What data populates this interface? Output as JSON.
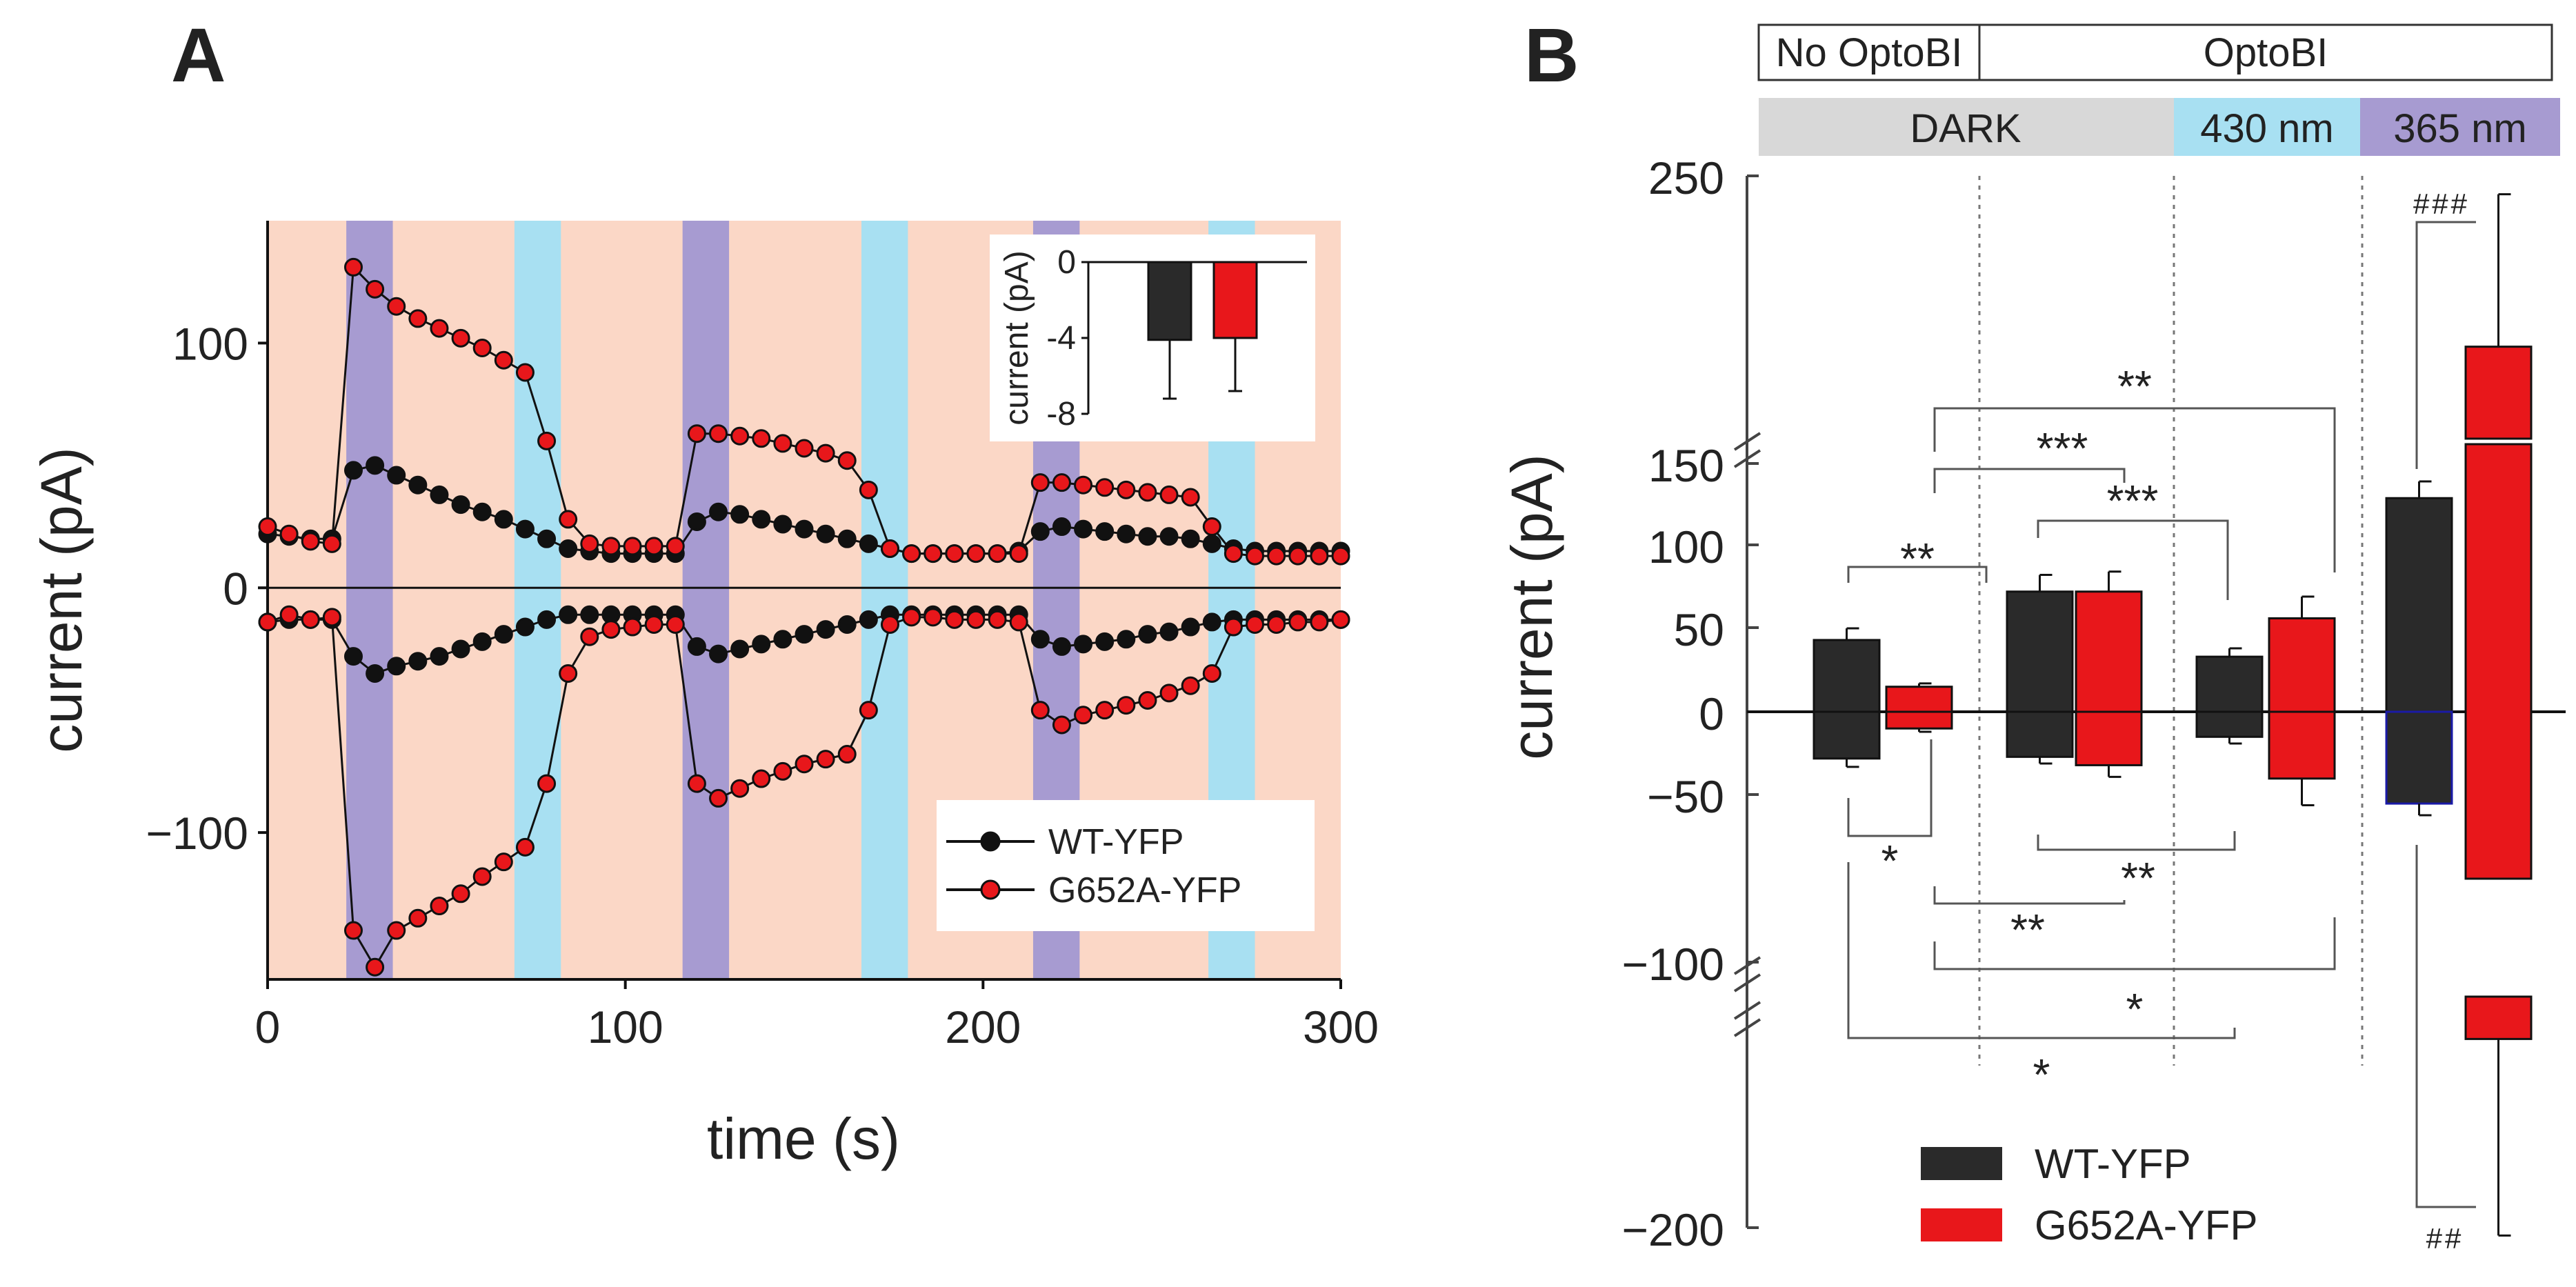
{
  "panels": {
    "a": "A",
    "b": "B"
  },
  "chart_data": [
    {
      "type": "line",
      "panel": "A",
      "xlabel": "time (s)",
      "ylabel": "current (pA)",
      "xlim": [
        0,
        300
      ],
      "ylim": [
        -160,
        150
      ],
      "xticks": [
        "0",
        "100",
        "200",
        "300"
      ],
      "yticks": [
        "−100",
        "0",
        "100"
      ],
      "ytick_values": [
        -100,
        0,
        100
      ],
      "xtick_values": [
        0,
        100,
        200,
        300
      ],
      "background_color": "#fbd7c6",
      "illumination_bands": [
        {
          "start": 22,
          "end": 35,
          "light": "365 nm",
          "color": "#a79bd1"
        },
        {
          "start": 69,
          "end": 82,
          "light": "430 nm",
          "color": "#a8e0f2"
        },
        {
          "start": 116,
          "end": 129,
          "light": "365 nm",
          "color": "#a79bd1"
        },
        {
          "start": 166,
          "end": 179,
          "light": "430 nm",
          "color": "#a8e0f2"
        },
        {
          "start": 214,
          "end": 227,
          "light": "365 nm",
          "color": "#a79bd1"
        },
        {
          "start": 263,
          "end": 276,
          "light": "430 nm",
          "color": "#a8e0f2"
        }
      ],
      "x": [
        0,
        6,
        12,
        18,
        24,
        30,
        36,
        42,
        48,
        54,
        60,
        66,
        72,
        78,
        84,
        90,
        96,
        102,
        108,
        114,
        120,
        126,
        132,
        138,
        144,
        150,
        156,
        162,
        168,
        174,
        180,
        186,
        192,
        198,
        204,
        210,
        216,
        222,
        228,
        234,
        240,
        246,
        252,
        258,
        264,
        270,
        276,
        282,
        288,
        294,
        300
      ],
      "series": [
        {
          "name": "WT-YFP",
          "color": "#111111",
          "part": "outward",
          "values": [
            22,
            21,
            20,
            20,
            48,
            50,
            46,
            42,
            38,
            34,
            31,
            28,
            24,
            20,
            16,
            15,
            14,
            14,
            14,
            14,
            27,
            31,
            30,
            28,
            26,
            24,
            22,
            20,
            18,
            16,
            14,
            14,
            14,
            14,
            14,
            15,
            23,
            25,
            24,
            23,
            22,
            21,
            21,
            20,
            18,
            16,
            15,
            15,
            15,
            15,
            15
          ]
        },
        {
          "name": "WT-YFP",
          "color": "#111111",
          "part": "inward",
          "values": [
            -14,
            -13,
            -13,
            -13,
            -28,
            -35,
            -32,
            -30,
            -28,
            -25,
            -22,
            -19,
            -16,
            -13,
            -11,
            -11,
            -11,
            -11,
            -11,
            -11,
            -24,
            -27,
            -25,
            -23,
            -21,
            -19,
            -17,
            -15,
            -13,
            -11,
            -11,
            -11,
            -11,
            -11,
            -11,
            -11,
            -21,
            -24,
            -23,
            -22,
            -21,
            -19,
            -18,
            -16,
            -14,
            -13,
            -13,
            -13,
            -13,
            -13,
            -13
          ]
        },
        {
          "name": "G652A-YFP",
          "color": "#e8171b",
          "part": "outward",
          "values": [
            25,
            22,
            19,
            18,
            131,
            122,
            115,
            110,
            106,
            102,
            98,
            93,
            88,
            60,
            28,
            18,
            17,
            17,
            17,
            17,
            63,
            63,
            62,
            61,
            59,
            57,
            55,
            52,
            40,
            16,
            14,
            14,
            14,
            14,
            14,
            14,
            43,
            43,
            42,
            41,
            40,
            39,
            38,
            37,
            25,
            14,
            13,
            13,
            13,
            13,
            13
          ]
        },
        {
          "name": "G652A-YFP",
          "color": "#e8171b",
          "part": "inward",
          "values": [
            -14,
            -11,
            -13,
            -12,
            -140,
            -155,
            -140,
            -135,
            -130,
            -125,
            -118,
            -112,
            -106,
            -80,
            -35,
            -20,
            -17,
            -16,
            -15,
            -15,
            -80,
            -86,
            -82,
            -78,
            -75,
            -72,
            -70,
            -68,
            -50,
            -15,
            -12,
            -12,
            -13,
            -13,
            -13,
            -14,
            -50,
            -56,
            -52,
            -50,
            -48,
            -46,
            -43,
            -40,
            -35,
            -16,
            -15,
            -15,
            -14,
            -14,
            -13
          ]
        }
      ],
      "legend": [
        "WT-YFP",
        "G652A-YFP"
      ],
      "inset": {
        "type": "bar",
        "ylabel": "current (pA)",
        "ylim": [
          -8,
          0
        ],
        "yticks": [
          "0",
          "-4",
          "-8"
        ],
        "ytick_values": [
          0,
          -4,
          -8
        ],
        "categories": [
          "WT-YFP",
          "G652A-YFP"
        ],
        "values": [
          -4.1,
          -4.0
        ],
        "errors": [
          3.1,
          2.8
        ],
        "colors": [
          "#2a2a2a",
          "#e8171b"
        ]
      }
    },
    {
      "type": "bar",
      "panel": "B",
      "ylabel": "current  (pA)",
      "y_axis_break": {
        "lower": [
          -100,
          150
        ],
        "upper_top": 250,
        "bottom": -200
      },
      "yticks": [
        "250",
        "150",
        "100",
        "50",
        "0",
        "−50",
        "−100",
        "−200"
      ],
      "conditions_top": [
        {
          "label": "No OptoBI",
          "groups": [
            1
          ]
        },
        {
          "label": "OptoBI",
          "groups": [
            2,
            3,
            4
          ]
        }
      ],
      "light_conditions": [
        {
          "label": "DARK",
          "color": "#d8d8d8",
          "groups": [
            1,
            2
          ]
        },
        {
          "label": "430 nm",
          "color": "#a8e0f2",
          "groups": [
            3
          ]
        },
        {
          "label": "365 nm",
          "color": "#a79bd1",
          "groups": [
            4
          ]
        }
      ],
      "groups": [
        {
          "group": 1,
          "condition": "No OptoBI / DARK",
          "WT-YFP": {
            "outward": 43,
            "outward_err": 7,
            "inward": -28,
            "inward_err": 5
          },
          "G652A-YFP": {
            "outward": 15,
            "outward_err": 2,
            "inward": -10,
            "inward_err": 2
          }
        },
        {
          "group": 2,
          "condition": "OptoBI / DARK",
          "WT-YFP": {
            "outward": 72,
            "outward_err": 10,
            "inward": -27,
            "inward_err": 4
          },
          "G652A-YFP": {
            "outward": 72,
            "outward_err": 12,
            "inward": -32,
            "inward_err": 7
          }
        },
        {
          "group": 3,
          "condition": "OptoBI / 430 nm",
          "WT-YFP": {
            "outward": 33,
            "outward_err": 5,
            "inward": -15,
            "inward_err": 4
          },
          "G652A-YFP": {
            "outward": 56,
            "outward_err": 13,
            "inward": -40,
            "inward_err": 16
          }
        },
        {
          "group": 4,
          "condition": "OptoBI / 365 nm",
          "WT-YFP": {
            "outward": 128,
            "outward_err": 10,
            "inward": -55,
            "inward_err": 7
          },
          "G652A-YFP": {
            "outward": 185,
            "outward_err": 58,
            "inward": -128,
            "inward_err": 75
          }
        }
      ],
      "significance": [
        "**",
        "***",
        "***",
        "**",
        "*",
        "**",
        "**",
        "*",
        "*",
        "###",
        "##"
      ],
      "legend": [
        "WT-YFP",
        "G652A-YFP"
      ],
      "colors": {
        "WT-YFP": "#2a2a2a",
        "G652A-YFP": "#e8171b"
      }
    }
  ]
}
